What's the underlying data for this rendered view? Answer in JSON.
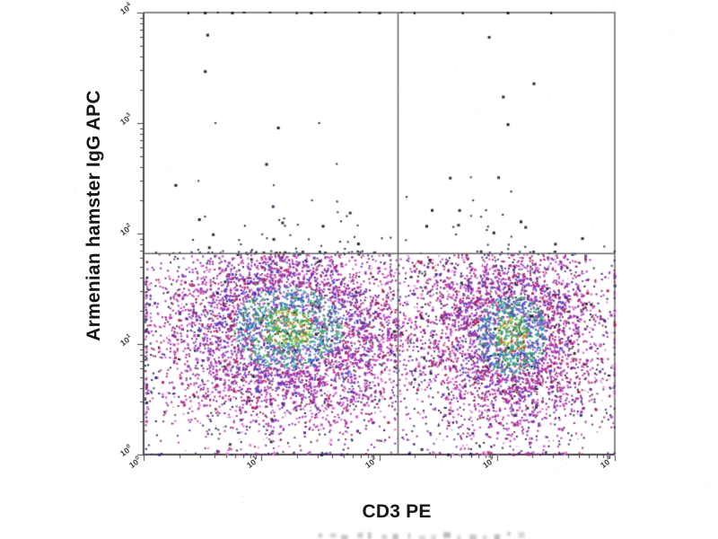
{
  "chart_data": {
    "type": "scatter",
    "subtype": "flow-cytometry-pseudocolor-dot-plot",
    "title": "",
    "xlabel": "CD3 PE",
    "ylabel": "Armenian hamster IgG APC",
    "x_scale": "log",
    "y_scale": "log",
    "x_range_log": [
      0,
      4
    ],
    "y_range_log": [
      0,
      4
    ],
    "grid": false,
    "legend": false,
    "x_ticks": [
      {
        "base": "10",
        "exp": "0",
        "log": 0
      },
      {
        "base": "10",
        "exp": "1",
        "log": 1
      },
      {
        "base": "10",
        "exp": "2",
        "log": 2
      },
      {
        "base": "10",
        "exp": "3",
        "log": 3
      },
      {
        "base": "10",
        "exp": "4",
        "log": 4
      }
    ],
    "y_ticks": [
      {
        "base": "10",
        "exp": "0",
        "log": 0
      },
      {
        "base": "10",
        "exp": "1",
        "log": 1
      },
      {
        "base": "10",
        "exp": "2",
        "log": 2
      },
      {
        "base": "10",
        "exp": "3",
        "log": 3
      },
      {
        "base": "10",
        "exp": "4",
        "log": 4
      }
    ],
    "quadrant_gate": {
      "x_log": 2.16,
      "y_log": 1.82
    },
    "populations": [
      {
        "name": "CD3-negative cloud",
        "center_log": [
          1.22,
          1.15
        ],
        "sigma_log": [
          0.58,
          0.47
        ],
        "count": 5200
      },
      {
        "name": "CD3-positive cloud",
        "center_log": [
          3.12,
          1.09
        ],
        "sigma_log": [
          0.37,
          0.46
        ],
        "count": 3600
      }
    ],
    "background_events": {
      "count": 800,
      "x_log_range": [
        0.03,
        3.97
      ],
      "y_log_range": [
        0.03,
        1.78
      ]
    },
    "upper_left_outliers_log": [
      [
        0.54,
        3.8
      ],
      [
        0.52,
        3.47
      ],
      [
        0.61,
        3.0
      ],
      [
        1.49,
        3.0
      ],
      [
        1.14,
        2.96
      ],
      [
        1.04,
        2.63
      ],
      [
        1.64,
        2.63
      ],
      [
        0.27,
        2.44
      ],
      [
        0.47,
        2.13
      ],
      [
        0.86,
        2.07
      ],
      [
        1.2,
        2.07
      ],
      [
        1.52,
        2.07
      ],
      [
        1.75,
        2.19
      ],
      [
        1.82,
        1.91
      ]
    ],
    "upper_right_outliers_log": [
      [
        2.93,
        3.78
      ],
      [
        3.05,
        3.24
      ],
      [
        3.31,
        3.36
      ],
      [
        3.09,
        2.99
      ],
      [
        3.01,
        2.51
      ],
      [
        3.12,
        2.38
      ],
      [
        2.78,
        2.16
      ],
      [
        2.67,
        2.08
      ],
      [
        3.2,
        2.11
      ],
      [
        2.97,
        2.01
      ],
      [
        3.24,
        2.06
      ],
      [
        2.63,
        2.06
      ],
      [
        2.4,
        2.07
      ],
      [
        3.24,
        1.88
      ]
    ],
    "top_edge_events_x_log": [
      0.38,
      0.52,
      0.63,
      0.75,
      0.85,
      1.07,
      1.3,
      1.42,
      1.54,
      1.83,
      2.0,
      2.19,
      2.3,
      2.71,
      3.09,
      3.46
    ],
    "density_bands": [
      {
        "max_r": 0.38,
        "colors": [
          "#3cab4d",
          "#2e9e59",
          "#55b348",
          "#30a89c",
          "#e0832c",
          "#cc4631",
          "#d9c13a",
          "#3e6fd2",
          "#57b873"
        ]
      },
      {
        "max_r": 0.8,
        "colors": [
          "#2ea3a8",
          "#3f66cf",
          "#48a856",
          "#7b3bd0",
          "#bf3a99",
          "#4b4bd0",
          "#37a06e"
        ]
      },
      {
        "max_r": 1.35,
        "colors": [
          "#4a43c9",
          "#7c2cab",
          "#b1268e",
          "#a61e52",
          "#8833b3",
          "#c133b0"
        ]
      },
      {
        "max_r": 2.05,
        "colors": [
          "#8b29a9",
          "#c02fb2",
          "#a81e50",
          "#5e2aa0",
          "#d44ac6",
          "#971f96"
        ]
      },
      {
        "max_r": 99,
        "colors": [
          "#8b29a9",
          "#c02fb2",
          "#262670",
          "#1c1c50",
          "#a81e50",
          "#6a1f8e",
          "#e87fd8"
        ]
      }
    ],
    "sparse_dark_colors": [
      "#1c1c3a",
      "#222222",
      "#2a2a55",
      "#15152e"
    ],
    "colors": {
      "background": "#ffffff",
      "frame": "#8a8a8a",
      "axis": "#4a4a4a",
      "gate_line": "#666666",
      "tick": "#444444",
      "tick_label": "#3a3a3a",
      "label": "#161616",
      "outlier_dot": "#222222",
      "watermark_fragment": "#8c8c8c"
    },
    "bottom_cropped_watermark": true
  }
}
